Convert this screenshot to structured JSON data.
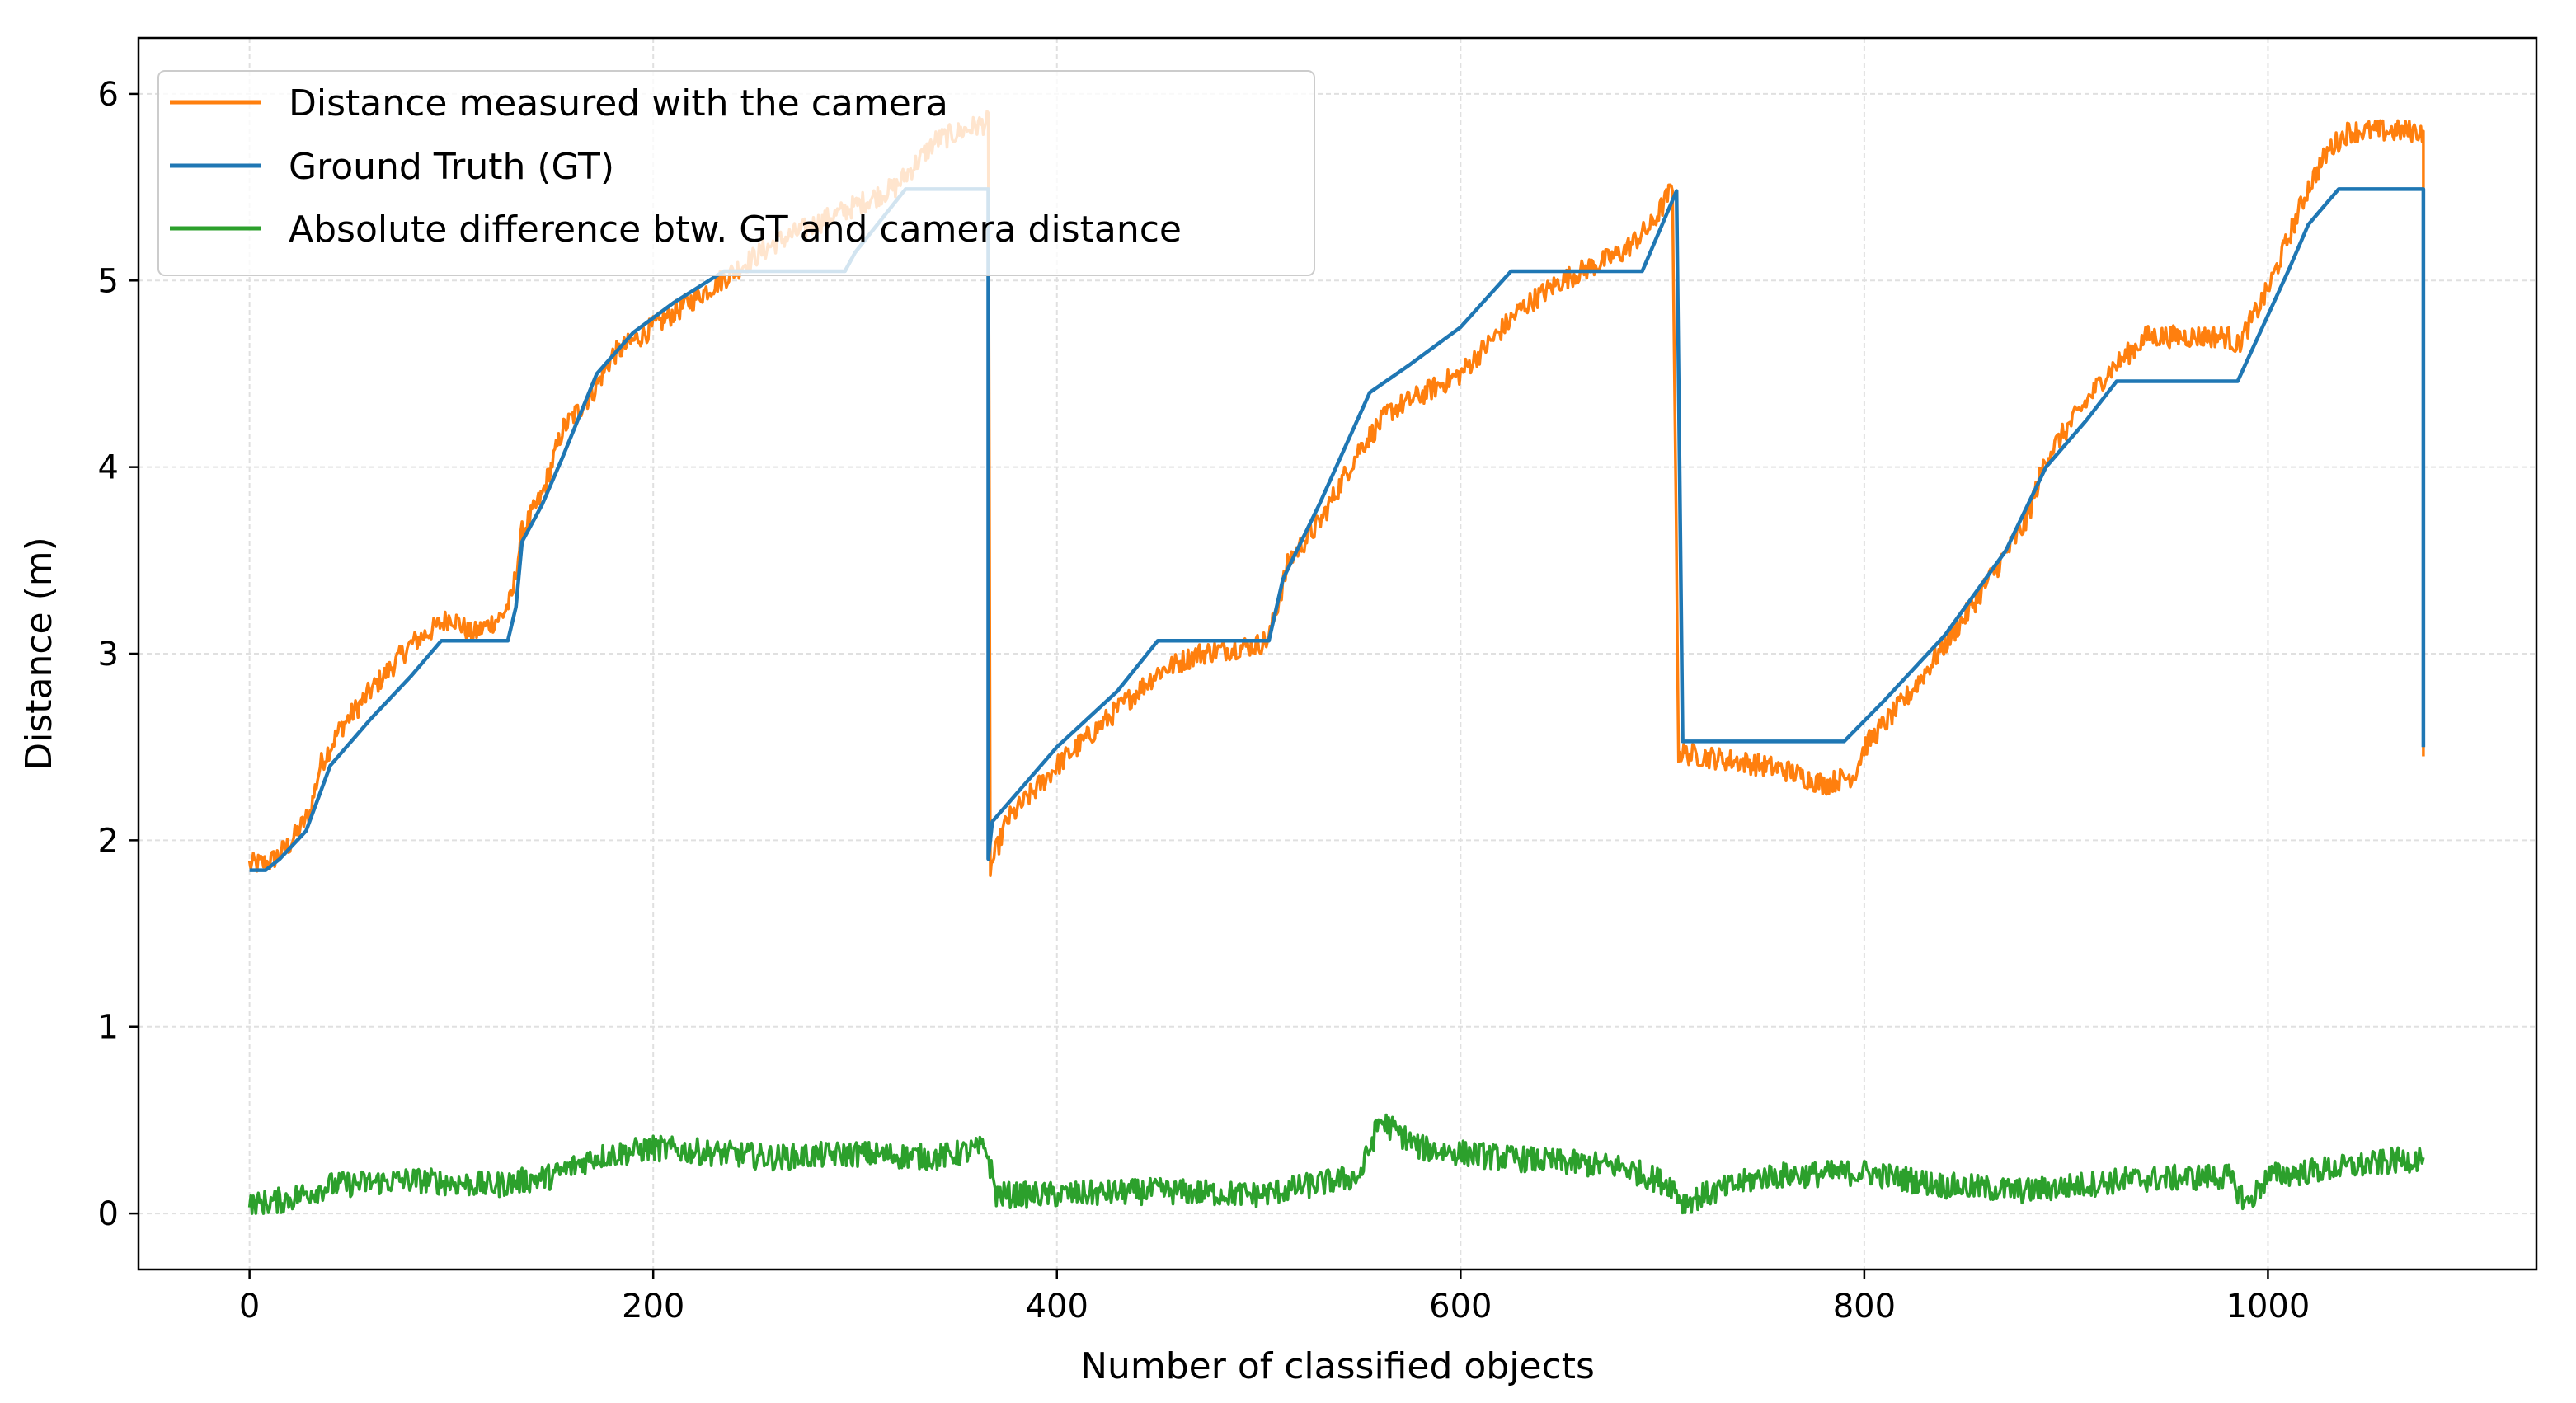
{
  "chart_data": {
    "type": "line",
    "title": "",
    "xlabel": "Number of classified objects",
    "ylabel": "Distance (m)",
    "xlim": [
      -55,
      1133
    ],
    "ylim": [
      -0.3,
      6.3
    ],
    "xticks": [
      0,
      200,
      400,
      600,
      800,
      1000
    ],
    "yticks": [
      0,
      1,
      2,
      3,
      4,
      5,
      6
    ],
    "xtick_labels": [
      "0",
      "200",
      "400",
      "600",
      "800",
      "1000"
    ],
    "ytick_labels": [
      "0",
      "1",
      "2",
      "3",
      "4",
      "5",
      "6"
    ],
    "grid": true,
    "legend_position": "top-left",
    "series": [
      {
        "name": "Distance measured with the camera",
        "color": "#ff7f0e",
        "noise": 0.06,
        "points": [
          [
            0,
            1.87
          ],
          [
            10,
            1.88
          ],
          [
            20,
            1.98
          ],
          [
            30,
            2.15
          ],
          [
            35,
            2.4
          ],
          [
            45,
            2.6
          ],
          [
            60,
            2.8
          ],
          [
            80,
            3.05
          ],
          [
            100,
            3.2
          ],
          [
            110,
            3.1
          ],
          [
            125,
            3.2
          ],
          [
            130,
            3.3
          ],
          [
            135,
            3.65
          ],
          [
            145,
            3.85
          ],
          [
            155,
            4.2
          ],
          [
            170,
            4.4
          ],
          [
            180,
            4.6
          ],
          [
            200,
            4.75
          ],
          [
            220,
            4.9
          ],
          [
            240,
            5.05
          ],
          [
            260,
            5.2
          ],
          [
            280,
            5.3
          ],
          [
            300,
            5.4
          ],
          [
            320,
            5.5
          ],
          [
            340,
            5.75
          ],
          [
            366,
            5.85
          ],
          [
            367,
            1.85
          ],
          [
            375,
            2.1
          ],
          [
            400,
            2.4
          ],
          [
            430,
            2.7
          ],
          [
            450,
            2.9
          ],
          [
            470,
            3.0
          ],
          [
            500,
            3.05
          ],
          [
            505,
            3.08
          ],
          [
            515,
            3.5
          ],
          [
            530,
            3.7
          ],
          [
            550,
            4.1
          ],
          [
            565,
            4.3
          ],
          [
            600,
            4.5
          ],
          [
            630,
            4.85
          ],
          [
            650,
            5.0
          ],
          [
            680,
            5.15
          ],
          [
            695,
            5.3
          ],
          [
            705,
            5.5
          ],
          [
            708,
            2.47
          ],
          [
            720,
            2.45
          ],
          [
            740,
            2.42
          ],
          [
            760,
            2.38
          ],
          [
            780,
            2.3
          ],
          [
            795,
            2.35
          ],
          [
            800,
            2.5
          ],
          [
            820,
            2.75
          ],
          [
            850,
            3.2
          ],
          [
            880,
            3.7
          ],
          [
            890,
            4.05
          ],
          [
            920,
            4.5
          ],
          [
            940,
            4.7
          ],
          [
            980,
            4.7
          ],
          [
            985,
            4.65
          ],
          [
            1000,
            4.95
          ],
          [
            1020,
            5.5
          ],
          [
            1030,
            5.7
          ],
          [
            1040,
            5.8
          ],
          [
            1070,
            5.8
          ],
          [
            1077,
            5.8
          ],
          [
            1077,
            2.45
          ]
        ]
      },
      {
        "name": "Ground Truth (GT)",
        "color": "#1f77b4",
        "noise": 0,
        "points": [
          [
            0,
            1.84
          ],
          [
            8,
            1.84
          ],
          [
            15,
            1.9
          ],
          [
            28,
            2.05
          ],
          [
            40,
            2.4
          ],
          [
            60,
            2.65
          ],
          [
            80,
            2.88
          ],
          [
            95,
            3.07
          ],
          [
            128,
            3.07
          ],
          [
            132,
            3.25
          ],
          [
            135,
            3.6
          ],
          [
            145,
            3.8
          ],
          [
            155,
            4.05
          ],
          [
            172,
            4.5
          ],
          [
            190,
            4.72
          ],
          [
            210,
            4.88
          ],
          [
            235,
            5.05
          ],
          [
            295,
            5.05
          ],
          [
            300,
            5.15
          ],
          [
            325,
            5.49
          ],
          [
            366,
            5.49
          ],
          [
            366,
            1.9
          ],
          [
            368,
            2.1
          ],
          [
            380,
            2.25
          ],
          [
            400,
            2.5
          ],
          [
            430,
            2.8
          ],
          [
            450,
            3.07
          ],
          [
            505,
            3.07
          ],
          [
            512,
            3.4
          ],
          [
            530,
            3.8
          ],
          [
            555,
            4.4
          ],
          [
            575,
            4.55
          ],
          [
            600,
            4.75
          ],
          [
            625,
            5.05
          ],
          [
            690,
            5.05
          ],
          [
            707,
            5.48
          ],
          [
            710,
            2.53
          ],
          [
            790,
            2.53
          ],
          [
            810,
            2.75
          ],
          [
            840,
            3.1
          ],
          [
            870,
            3.55
          ],
          [
            890,
            4.0
          ],
          [
            910,
            4.25
          ],
          [
            925,
            4.46
          ],
          [
            985,
            4.46
          ],
          [
            1010,
            5.05
          ],
          [
            1020,
            5.3
          ],
          [
            1035,
            5.49
          ],
          [
            1077,
            5.49
          ],
          [
            1077,
            2.5
          ]
        ]
      },
      {
        "name": "Absolute difference btw. GT and camera distance",
        "color": "#2ca02c",
        "noise": 0.07,
        "points": [
          [
            0,
            0.04
          ],
          [
            20,
            0.08
          ],
          [
            40,
            0.15
          ],
          [
            80,
            0.18
          ],
          [
            120,
            0.15
          ],
          [
            150,
            0.2
          ],
          [
            170,
            0.3
          ],
          [
            200,
            0.35
          ],
          [
            260,
            0.3
          ],
          [
            300,
            0.32
          ],
          [
            340,
            0.3
          ],
          [
            365,
            0.35
          ],
          [
            370,
            0.1
          ],
          [
            400,
            0.1
          ],
          [
            450,
            0.12
          ],
          [
            500,
            0.1
          ],
          [
            550,
            0.2
          ],
          [
            560,
            0.5
          ],
          [
            580,
            0.35
          ],
          [
            620,
            0.3
          ],
          [
            680,
            0.25
          ],
          [
            705,
            0.15
          ],
          [
            710,
            0.06
          ],
          [
            750,
            0.2
          ],
          [
            800,
            0.22
          ],
          [
            840,
            0.15
          ],
          [
            880,
            0.12
          ],
          [
            930,
            0.18
          ],
          [
            980,
            0.2
          ],
          [
            990,
            0.05
          ],
          [
            1000,
            0.2
          ],
          [
            1040,
            0.25
          ],
          [
            1077,
            0.3
          ]
        ]
      }
    ]
  }
}
